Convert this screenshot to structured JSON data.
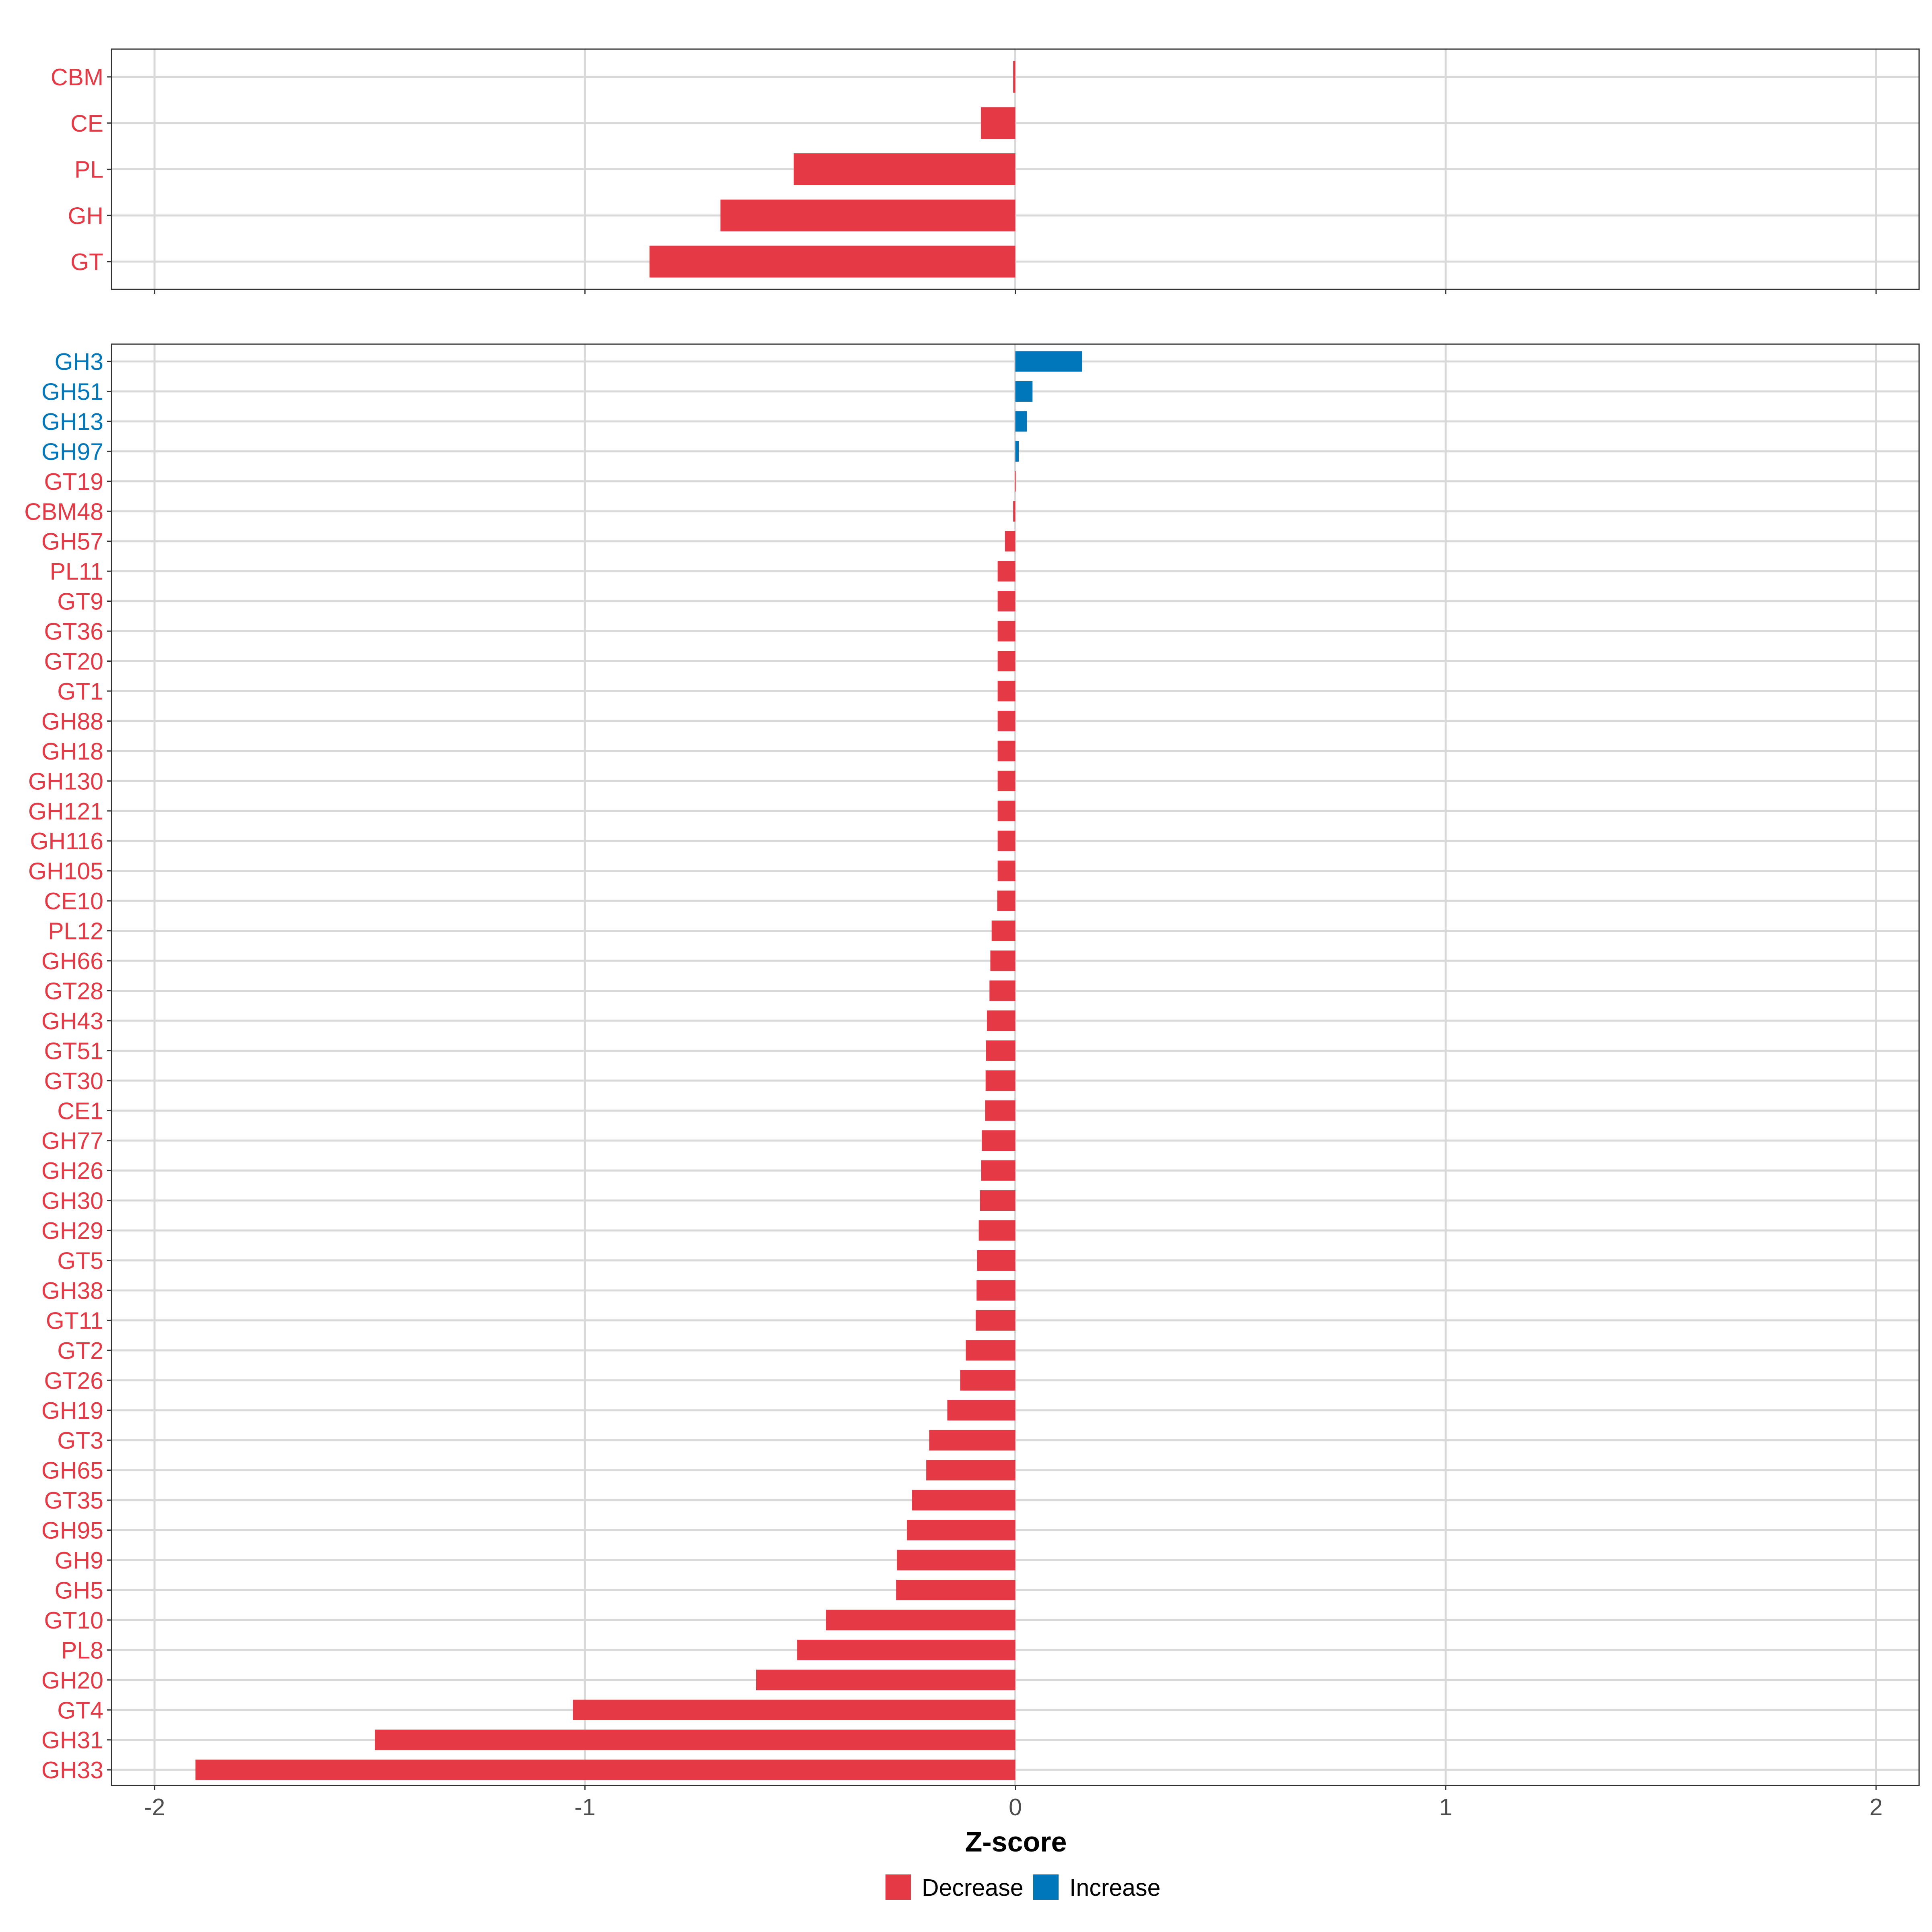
{
  "chart_data": [
    {
      "type": "bar",
      "orientation": "horizontal",
      "panel": "top",
      "categories": [
        "CBM",
        "CE",
        "PL",
        "GH",
        "GT"
      ],
      "values": [
        -0.005,
        -0.08,
        -0.515,
        -0.685,
        -0.85
      ],
      "groups": [
        "Decrease",
        "Decrease",
        "Decrease",
        "Decrease",
        "Decrease"
      ],
      "xlim": [
        -2.1,
        2.1
      ],
      "xticks": [
        -2,
        -1,
        0,
        1,
        2
      ],
      "grid": true
    },
    {
      "type": "bar",
      "orientation": "horizontal",
      "panel": "bottom",
      "categories": [
        "GH3",
        "GH51",
        "GH13",
        "GH97",
        "GT19",
        "CBM48",
        "GH57",
        "PL11",
        "GT9",
        "GT36",
        "GT20",
        "GT1",
        "GH88",
        "GH18",
        "GH130",
        "GH121",
        "GH116",
        "GH105",
        "CE10",
        "PL12",
        "GH66",
        "GT28",
        "GH43",
        "GT51",
        "GT30",
        "CE1",
        "GH77",
        "GH26",
        "GH30",
        "GH29",
        "GT5",
        "GH38",
        "GT11",
        "GT2",
        "GT26",
        "GH19",
        "GT3",
        "GH65",
        "GT35",
        "GH95",
        "GH9",
        "GH5",
        "GT10",
        "PL8",
        "GH20",
        "GT4",
        "GH31",
        "GH33"
      ],
      "values": [
        0.155,
        0.04,
        0.027,
        0.008,
        -0.001,
        -0.005,
        -0.024,
        -0.041,
        -0.041,
        -0.041,
        -0.041,
        -0.041,
        -0.041,
        -0.041,
        -0.041,
        -0.041,
        -0.041,
        -0.041,
        -0.042,
        -0.055,
        -0.058,
        -0.06,
        -0.066,
        -0.068,
        -0.069,
        -0.07,
        -0.078,
        -0.079,
        -0.082,
        -0.085,
        -0.089,
        -0.09,
        -0.092,
        -0.115,
        -0.128,
        -0.158,
        -0.2,
        -0.207,
        -0.24,
        -0.252,
        -0.275,
        -0.277,
        -0.44,
        -0.507,
        -0.602,
        -1.028,
        -1.488,
        -1.905
      ],
      "groups": [
        "Increase",
        "Increase",
        "Increase",
        "Increase",
        "Decrease",
        "Decrease",
        "Decrease",
        "Decrease",
        "Decrease",
        "Decrease",
        "Decrease",
        "Decrease",
        "Decrease",
        "Decrease",
        "Decrease",
        "Decrease",
        "Decrease",
        "Decrease",
        "Decrease",
        "Decrease",
        "Decrease",
        "Decrease",
        "Decrease",
        "Decrease",
        "Decrease",
        "Decrease",
        "Decrease",
        "Decrease",
        "Decrease",
        "Decrease",
        "Decrease",
        "Decrease",
        "Decrease",
        "Decrease",
        "Decrease",
        "Decrease",
        "Decrease",
        "Decrease",
        "Decrease",
        "Decrease",
        "Decrease",
        "Decrease",
        "Decrease",
        "Decrease",
        "Decrease",
        "Decrease",
        "Decrease",
        "Decrease"
      ],
      "xlim": [
        -2.1,
        2.1
      ],
      "xticks": [
        -2,
        -1,
        0,
        1,
        2
      ],
      "grid": true
    }
  ],
  "xlabel": "Z-score",
  "x_tick_labels": [
    "-2",
    "-1",
    "0",
    "1",
    "2"
  ],
  "legend": {
    "placement": "bottom",
    "items": [
      {
        "label": "Decrease",
        "color": "#E63946"
      },
      {
        "label": "Increase",
        "color": "#0077BB"
      }
    ]
  }
}
